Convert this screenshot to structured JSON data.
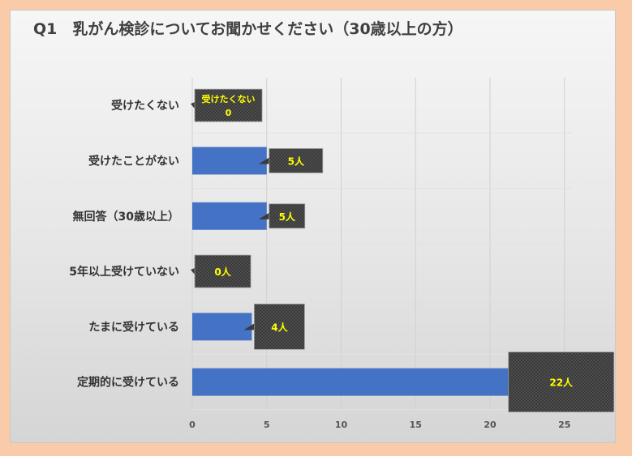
{
  "title": "Q1　乳がん検診についてお聞かせください（30歳以上の方）",
  "colors": {
    "bar": "#4472c4",
    "label_box": "#3a3a3a",
    "label_text": "#ffff00",
    "grid": "#d0d0d0"
  },
  "chart_data": {
    "type": "bar",
    "orientation": "horizontal",
    "title": "Q1　乳がん検診についてお聞かせください（30歳以上の方）",
    "categories": [
      "受けたくない",
      "受けたことがない",
      "無回答（30歳以上）",
      "5年以上受けていない",
      "たまに受けている",
      "定期的に受けている"
    ],
    "values": [
      0,
      5,
      5,
      0,
      4,
      22
    ],
    "data_labels": [
      "受けたくない|0",
      "5人",
      "5人",
      "0人",
      "4人",
      "22人"
    ],
    "xlim": [
      0,
      28
    ],
    "xticks": [
      0,
      5,
      10,
      15,
      20,
      25
    ],
    "grid": true,
    "legend": "none"
  }
}
